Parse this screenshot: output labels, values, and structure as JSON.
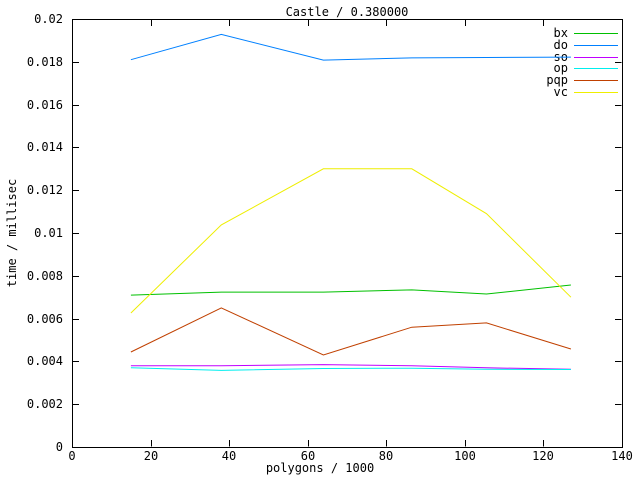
{
  "chart_data": {
    "type": "line",
    "title": "Castle / 0.380000",
    "xlabel": "polygons / 1000",
    "ylabel": "time / millisec",
    "xlim": [
      0,
      140
    ],
    "ylim": [
      0,
      0.02
    ],
    "xticks": [
      0,
      20,
      40,
      60,
      80,
      100,
      120,
      140
    ],
    "xtick_labels": [
      "0",
      "20",
      "40",
      "60",
      "80",
      "100",
      "120",
      "140"
    ],
    "yticks": [
      0,
      0.002,
      0.004,
      0.006,
      0.008,
      0.01,
      0.012,
      0.014,
      0.016,
      0.018,
      0.02
    ],
    "ytick_labels": [
      "0",
      "0.002",
      "0.004",
      "0.006",
      "0.008",
      "0.01",
      "0.012",
      "0.014",
      "0.016",
      "0.018",
      "0.02"
    ],
    "grid": false,
    "legend_position": "top-right-inside",
    "background_color": "#ffffff",
    "border_color": "#000000",
    "text_color": "#000000",
    "x": [
      15,
      38,
      64,
      86.5,
      105.5,
      127
    ],
    "series": [
      {
        "name": "bx",
        "color": "#00c000",
        "values": [
          0.0071,
          0.00724,
          0.00724,
          0.00734,
          0.00715,
          0.00757
        ]
      },
      {
        "name": "do",
        "color": "#0080ff",
        "values": [
          0.0181,
          0.01928,
          0.01808,
          0.01818,
          0.0182,
          0.01822
        ]
      },
      {
        "name": "so",
        "color": "#c000ff",
        "values": [
          0.0038,
          0.0038,
          0.00385,
          0.0038,
          0.0037,
          0.00363
        ]
      },
      {
        "name": "op",
        "color": "#00eeee",
        "values": [
          0.0037,
          0.00358,
          0.00367,
          0.00368,
          0.00363,
          0.00362
        ]
      },
      {
        "name": "pqp",
        "color": "#c04000",
        "values": [
          0.00444,
          0.0065,
          0.0043,
          0.0056,
          0.0058,
          0.00458
        ]
      },
      {
        "name": "vc",
        "color": "#eeee00",
        "values": [
          0.00626,
          0.01038,
          0.013,
          0.013,
          0.0109,
          0.007
        ]
      }
    ]
  }
}
